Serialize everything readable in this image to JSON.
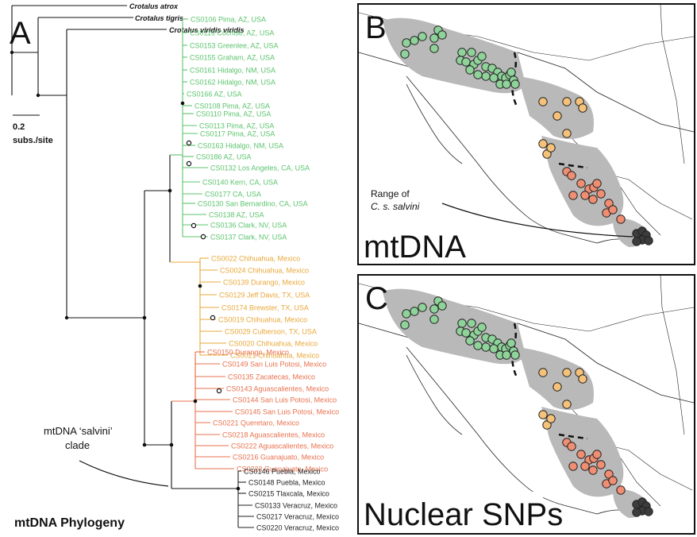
{
  "panel_letters": {
    "a": "A",
    "b": "B",
    "c": "C"
  },
  "outgroups": [
    "Crotalus atrox",
    "Crotalus tigris",
    "Crotalus viridis viridis"
  ],
  "scale": {
    "value": "0.2",
    "unit": "subs./site"
  },
  "clade_label": {
    "line1": "mtDNA ‘salvini’",
    "line2": "clade"
  },
  "tree_title": "mtDNA Phylogeny",
  "clades": [
    {
      "color": "#5cc46e",
      "taxa": [
        "CS0106 Pima, AZ, USA",
        "CS0116 Cochise, AZ, USA",
        "CS0153 Greenlee, AZ, USA",
        "CS0155 Graham, AZ, USA",
        "CS0161 Hidalgo, NM, USA",
        "CS0162 Hidalgo, NM, USA",
        "CS0166 AZ, USA",
        "CS0108 Pima, AZ, USA",
        "CS0110 Pima, AZ, USA",
        "CS0113 Pima, AZ, USA",
        "CS0117 Pima, AZ, USA",
        "CS0163 Hidalgo, NM, USA",
        "CS0186 AZ, USA",
        "CS0132 Los Angeles, CA, USA",
        "CS0140 Kern, CA, USA",
        "CS0177 CA, USA",
        "CS0130 San Bernardino, CA, USA",
        "CS0138 AZ, USA",
        "CS0136 Clark, NV, USA",
        "CS0137 Clark, NV, USA"
      ]
    },
    {
      "color": "#e9a83a",
      "taxa": [
        "CS0022 Chihuahua, Mexico",
        "CS0024 Chihuahua, Mexico",
        "CS0139 Durango, Mexico",
        "CS0129 Jeff Davis, TX, USA",
        "CS0174 Brewster, TX, USA",
        "CS0019 Chihuahua, Mexico",
        "CS0029 Culberson, TX, USA",
        "CS0020 Chihuahua, Mexico",
        "CS0021 Chihuahua, Mexico"
      ]
    },
    {
      "color": "#e8714e",
      "taxa": [
        "CS0150 Durango, Mexico",
        "CS0149 San Luis Potosi, Mexico",
        "CS0135 Zacatecas, Mexico",
        "CS0143 Aguascalientes, Mexico",
        "CS0144 San Luis Potosi, Mexico",
        "CS0145 San Luis Potosi, Mexico",
        "CS0221 Queretaro, Mexico",
        "CS0218 Aguascalientes, Mexico",
        "CS0222 Aguascalientes, Mexico",
        "CS0216 Guanajuato, Mexico",
        "CS0223 Guanajuato, Mexico"
      ]
    },
    {
      "color": "#222222",
      "taxa": [
        "CS0146 Puebla, Mexico",
        "CS0148 Puebla, Mexico",
        "CS0215 Tlaxcala, Mexico",
        "CS0133 Veracruz, Mexico",
        "CS0217 Veracruz, Mexico",
        "CS0220 Veracruz, Mexico"
      ]
    }
  ],
  "map_b": {
    "label": "mtDNA",
    "range_note_1": "Range of",
    "range_note_2": "C. s. salvini"
  },
  "map_c": {
    "label": "Nuclear SNPs"
  },
  "colors": {
    "green": "#8fd39a",
    "orange": "#f6c27a",
    "red": "#ef8e72",
    "dark": "#3c3c3c",
    "range": "#b9b9b9",
    "line": "#111111"
  }
}
